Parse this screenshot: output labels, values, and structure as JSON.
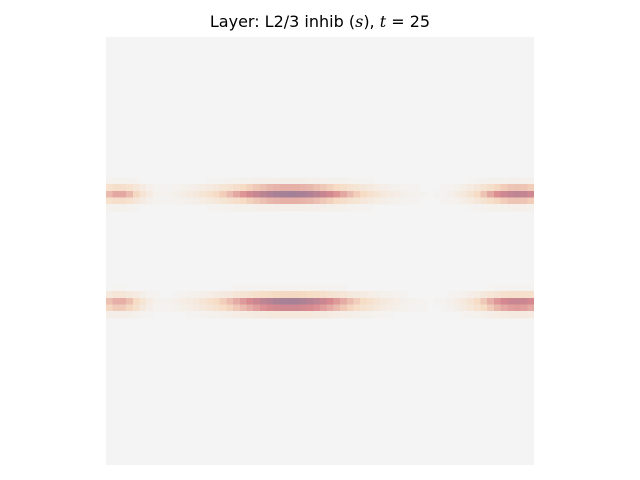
{
  "chart_data": {
    "type": "heatmap",
    "title": {
      "prefix": "Layer: L2/3 inhib (",
      "var_symbol": "s",
      "middle": "), ",
      "time_symbol": "t",
      "equals": " = ",
      "time_value": "25"
    },
    "xlabel": "",
    "ylabel": "",
    "axes_visible": false,
    "grid": false,
    "colormap": {
      "background": "#f4f4f4",
      "low": "#f6dcc4",
      "mid": "#d98a8f",
      "high": "#9a7e98"
    },
    "grid_size": [
      64,
      64
    ],
    "value_range": [
      0,
      1
    ],
    "blobs": [
      {
        "row": 23.5,
        "col": 2.0,
        "row_sigma": 0.9,
        "col_sigma": 2.6,
        "peak": 0.55
      },
      {
        "row": 23.5,
        "col": 27.5,
        "row_sigma": 0.9,
        "col_sigma": 7.5,
        "peak": 0.95
      },
      {
        "row": 23.5,
        "col": 61.5,
        "row_sigma": 0.9,
        "col_sigma": 4.5,
        "peak": 0.8
      },
      {
        "row": 39.8,
        "col": 2.0,
        "row_sigma": 0.9,
        "col_sigma": 2.6,
        "peak": 0.55
      },
      {
        "row": 39.8,
        "col": 27.5,
        "row_sigma": 0.9,
        "col_sigma": 7.5,
        "peak": 0.98
      },
      {
        "row": 39.8,
        "col": 61.5,
        "row_sigma": 0.9,
        "col_sigma": 4.5,
        "peak": 0.8
      }
    ]
  }
}
